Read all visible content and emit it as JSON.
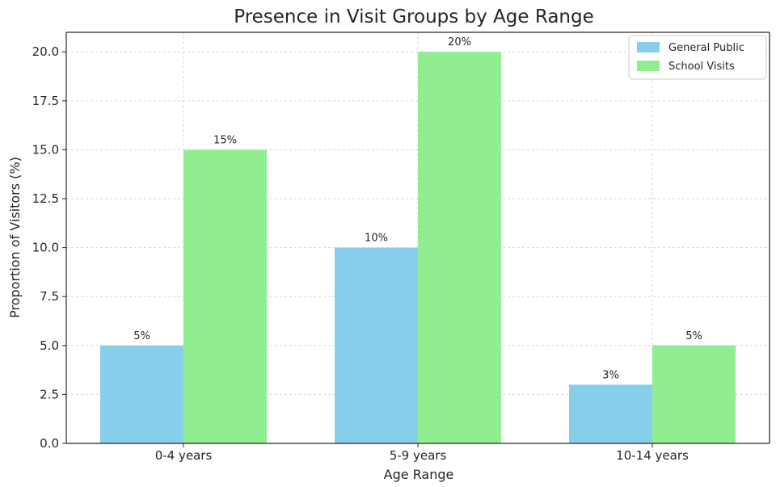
{
  "chart_data": {
    "type": "bar",
    "title": "Presence in Visit Groups by Age Range",
    "xlabel": "Age Range",
    "ylabel": "Proportion of Visitors (%)",
    "categories": [
      "0-4 years",
      "5-9 years",
      "10-14 years"
    ],
    "series": [
      {
        "name": "General Public",
        "values": [
          5,
          10,
          3
        ],
        "labels": [
          "5%",
          "10%",
          "3%"
        ],
        "color": "#87ceeb"
      },
      {
        "name": "School Visits",
        "values": [
          15,
          20,
          5
        ],
        "labels": [
          "15%",
          "20%",
          "5%"
        ],
        "color": "#90ee90"
      }
    ],
    "ylim": [
      0,
      21
    ],
    "yticks": [
      0,
      2.5,
      5,
      7.5,
      10,
      12.5,
      15,
      17.5,
      20
    ],
    "ytick_labels": [
      "0.0",
      "2.5",
      "5.0",
      "7.5",
      "10.0",
      "12.5",
      "15.0",
      "17.5",
      "20.0"
    ],
    "grid": true,
    "legend_position": "top-right"
  }
}
